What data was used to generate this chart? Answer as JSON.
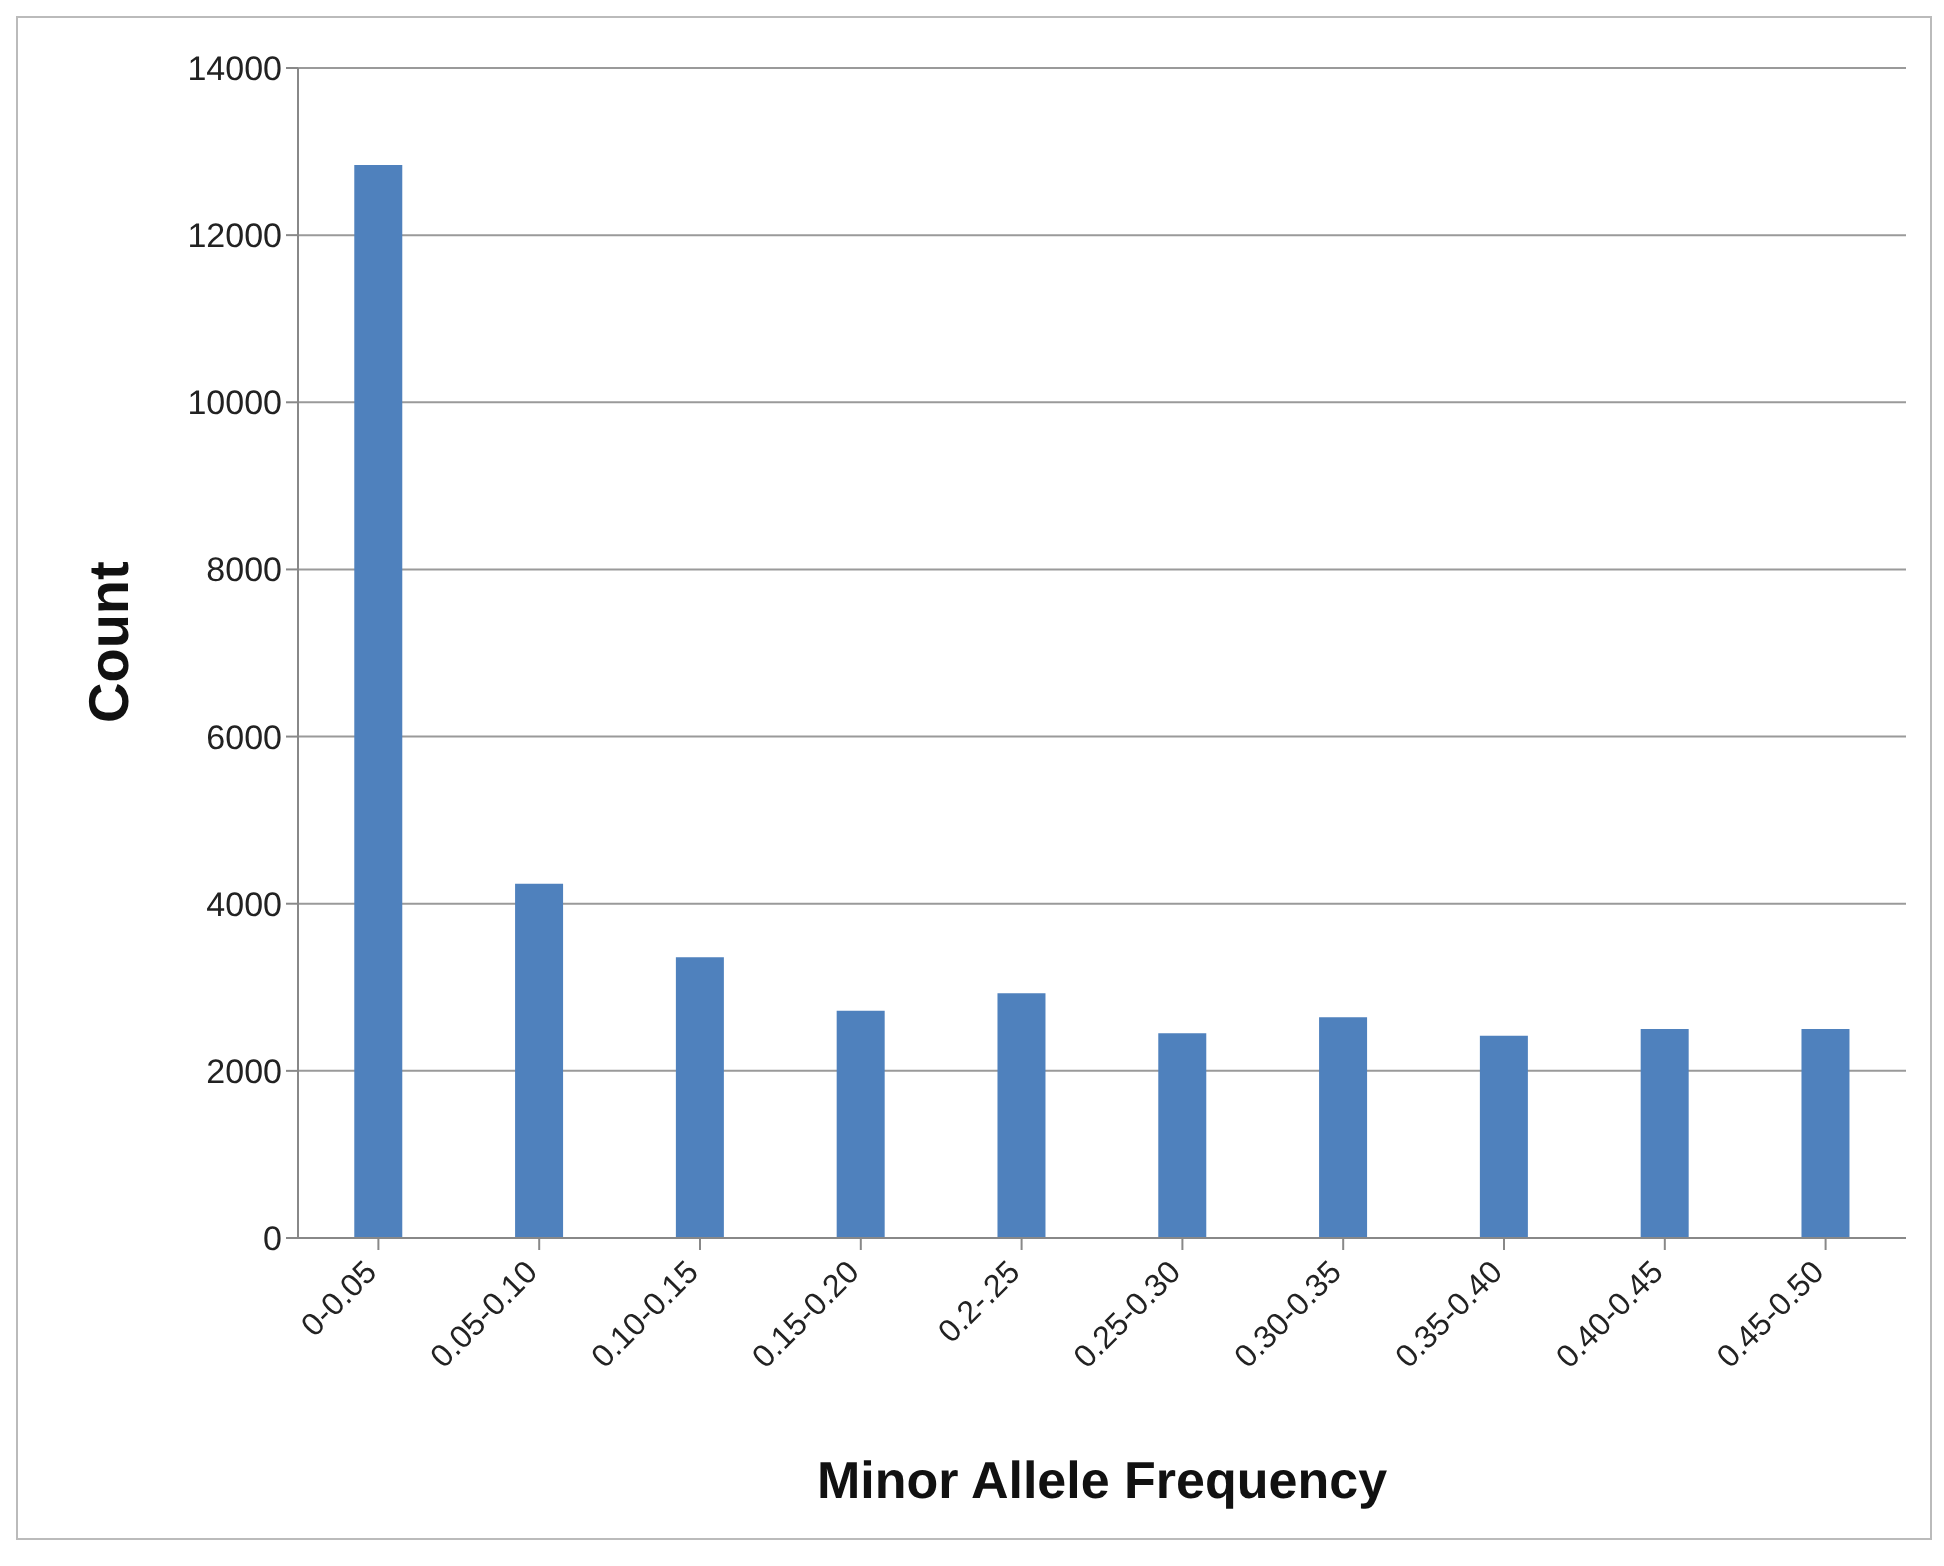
{
  "chart_data": {
    "type": "bar",
    "xlabel": "Minor Allele Frequency",
    "ylabel": "Count",
    "categories": [
      "0-0.05",
      "0.05-0.10",
      "0.10-0.15",
      "0.15-0.20",
      "0.2-.25",
      "0.25-0.30",
      "0.30-0.35",
      "0.35-0.40",
      "0.40-0.45",
      "0.45-0.50"
    ],
    "values": [
      12840,
      4240,
      3360,
      2720,
      2930,
      2450,
      2640,
      2420,
      2500,
      2500
    ],
    "color": "#4f81bd",
    "ylim": [
      0,
      14000
    ],
    "yticks": [
      0,
      2000,
      4000,
      6000,
      8000,
      10000,
      12000,
      14000
    ],
    "grid": "y",
    "legend": false
  }
}
